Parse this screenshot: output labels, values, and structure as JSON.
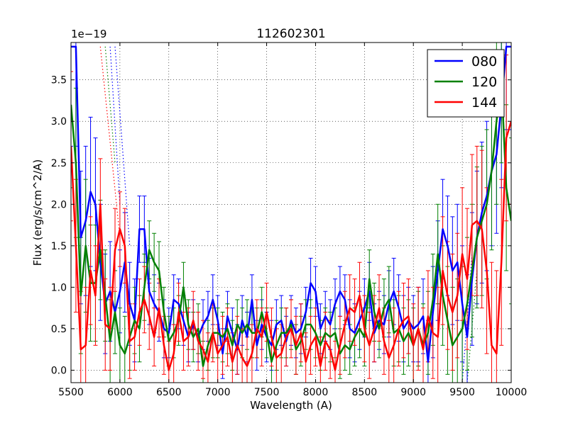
{
  "chart_data": {
    "type": "line",
    "title": "112602301",
    "xlabel": "Wavelength (A)",
    "ylabel": "Flux (erg/s/cm^2/A)",
    "y_scale_note": "1e−19",
    "xlim": [
      5500,
      10000
    ],
    "ylim": [
      -0.15,
      3.95
    ],
    "xticks": [
      5500,
      6000,
      6500,
      7000,
      7500,
      8000,
      8500,
      9000,
      9500,
      10000
    ],
    "xtick_labels": [
      "5500",
      "6000",
      "6500",
      "7000",
      "7500",
      "8000",
      "8500",
      "9000",
      "9500",
      "10000"
    ],
    "yticks": [
      0.0,
      0.5,
      1.0,
      1.5,
      2.0,
      2.5,
      3.0,
      3.5
    ],
    "ytick_labels": [
      "0.0",
      "0.5",
      "1.0",
      "1.5",
      "2.0",
      "2.5",
      "3.0",
      "3.5"
    ],
    "grid": true,
    "legend_position": "top-right",
    "series": [
      {
        "name": "080",
        "color": "#0000ff",
        "x": [
          5500,
          5550,
          5600,
          5650,
          5700,
          5750,
          5800,
          5850,
          5900,
          5950,
          6000,
          6050,
          6100,
          6150,
          6200,
          6250,
          6300,
          6350,
          6400,
          6450,
          6500,
          6550,
          6600,
          6650,
          6700,
          6750,
          6800,
          6850,
          6900,
          6950,
          7000,
          7050,
          7100,
          7150,
          7200,
          7250,
          7300,
          7350,
          7400,
          7450,
          7500,
          7550,
          7600,
          7650,
          7700,
          7750,
          7800,
          7850,
          7900,
          7950,
          8000,
          8050,
          8100,
          8150,
          8200,
          8250,
          8300,
          8350,
          8400,
          8450,
          8500,
          8550,
          8600,
          8650,
          8700,
          8750,
          8800,
          8850,
          8900,
          8950,
          9000,
          9050,
          9100,
          9150,
          9200,
          9250,
          9300,
          9350,
          9400,
          9450,
          9500,
          9550,
          9600,
          9650,
          9700,
          9750,
          9800,
          9850,
          9900,
          9950,
          10000
        ],
        "y": [
          3.9,
          3.9,
          1.6,
          1.8,
          2.15,
          2.0,
          1.3,
          0.8,
          0.95,
          0.7,
          0.95,
          1.3,
          0.8,
          0.6,
          1.7,
          1.7,
          0.95,
          0.8,
          0.7,
          0.5,
          0.45,
          0.85,
          0.8,
          0.6,
          0.4,
          0.55,
          0.4,
          0.55,
          0.65,
          0.85,
          0.6,
          0.2,
          0.65,
          0.45,
          0.25,
          0.6,
          0.4,
          0.85,
          0.3,
          0.55,
          0.4,
          0.3,
          0.55,
          0.6,
          0.35,
          0.6,
          0.45,
          0.5,
          0.7,
          1.05,
          0.95,
          0.5,
          0.65,
          0.55,
          0.8,
          0.95,
          0.85,
          0.5,
          0.45,
          0.6,
          0.75,
          0.95,
          0.45,
          0.6,
          0.55,
          0.8,
          0.95,
          0.75,
          0.5,
          0.6,
          0.5,
          0.55,
          0.65,
          0.1,
          0.7,
          1.2,
          1.7,
          1.5,
          1.2,
          1.3,
          0.8,
          0.4,
          1.1,
          1.6,
          1.9,
          2.1,
          2.4,
          2.6,
          3.2,
          3.9,
          3.9
        ],
        "yerr": [
          1.2,
          1.2,
          0.8,
          0.9,
          0.9,
          0.8,
          0.7,
          0.6,
          0.6,
          0.5,
          0.5,
          0.6,
          0.5,
          0.5,
          0.4,
          0.4,
          0.4,
          0.35,
          0.35,
          0.35,
          0.3,
          0.3,
          0.3,
          0.3,
          0.3,
          0.3,
          0.3,
          0.3,
          0.3,
          0.3,
          0.3,
          0.3,
          0.3,
          0.3,
          0.3,
          0.3,
          0.3,
          0.3,
          0.3,
          0.3,
          0.3,
          0.3,
          0.3,
          0.3,
          0.3,
          0.3,
          0.3,
          0.3,
          0.3,
          0.3,
          0.3,
          0.3,
          0.3,
          0.3,
          0.3,
          0.3,
          0.3,
          0.35,
          0.35,
          0.35,
          0.35,
          0.35,
          0.35,
          0.35,
          0.35,
          0.4,
          0.4,
          0.4,
          0.4,
          0.4,
          0.4,
          0.45,
          0.45,
          0.5,
          0.55,
          0.6,
          0.6,
          0.6,
          0.65,
          0.7,
          0.7,
          0.75,
          0.8,
          0.8,
          0.85,
          0.9,
          0.9,
          0.95,
          1.0,
          1.0,
          1.0
        ]
      },
      {
        "name": "120",
        "color": "#008000",
        "x": [
          5500,
          5550,
          5600,
          5650,
          5700,
          5750,
          5800,
          5850,
          5900,
          5950,
          6000,
          6050,
          6100,
          6150,
          6200,
          6250,
          6300,
          6350,
          6400,
          6450,
          6500,
          6550,
          6600,
          6650,
          6700,
          6750,
          6800,
          6850,
          6900,
          6950,
          7000,
          7050,
          7100,
          7150,
          7200,
          7250,
          7300,
          7350,
          7400,
          7450,
          7500,
          7550,
          7600,
          7650,
          7700,
          7750,
          7800,
          7850,
          7900,
          7950,
          8000,
          8050,
          8100,
          8150,
          8200,
          8250,
          8300,
          8350,
          8400,
          8450,
          8500,
          8550,
          8600,
          8650,
          8700,
          8750,
          8800,
          8850,
          8900,
          8950,
          9000,
          9050,
          9100,
          9150,
          9200,
          9250,
          9300,
          9350,
          9400,
          9450,
          9500,
          9550,
          9600,
          9650,
          9700,
          9750,
          9800,
          9850,
          9900,
          9950,
          10000
        ],
        "y": [
          3.2,
          2.5,
          0.9,
          1.5,
          1.05,
          1.05,
          1.45,
          0.9,
          0.35,
          0.7,
          0.3,
          0.2,
          0.4,
          0.6,
          0.5,
          1.0,
          1.45,
          1.3,
          1.2,
          0.7,
          0.35,
          0.45,
          0.6,
          1.0,
          0.55,
          0.4,
          0.5,
          0.05,
          0.3,
          0.45,
          0.45,
          0.4,
          0.5,
          0.3,
          0.55,
          0.45,
          0.55,
          0.45,
          0.45,
          0.7,
          0.45,
          0.1,
          0.3,
          0.45,
          0.45,
          0.55,
          0.25,
          0.35,
          0.55,
          0.55,
          0.45,
          0.3,
          0.45,
          0.4,
          0.45,
          0.2,
          0.3,
          0.25,
          0.4,
          0.5,
          0.4,
          1.1,
          0.7,
          0.5,
          0.75,
          0.85,
          0.45,
          0.5,
          0.35,
          0.45,
          0.3,
          0.5,
          0.3,
          0.45,
          0.85,
          1.4,
          0.9,
          0.6,
          0.3,
          0.4,
          0.5,
          0.8,
          1.2,
          1.6,
          1.8,
          2.0,
          2.4,
          3.0,
          3.5,
          2.2,
          1.8
        ],
        "yerr": [
          1.0,
          0.9,
          0.7,
          0.8,
          0.7,
          0.7,
          0.6,
          0.55,
          0.5,
          0.5,
          0.45,
          0.45,
          0.4,
          0.4,
          0.4,
          0.4,
          0.35,
          0.35,
          0.35,
          0.3,
          0.3,
          0.3,
          0.3,
          0.3,
          0.3,
          0.3,
          0.3,
          0.3,
          0.3,
          0.3,
          0.3,
          0.3,
          0.3,
          0.3,
          0.3,
          0.3,
          0.3,
          0.3,
          0.3,
          0.3,
          0.3,
          0.3,
          0.3,
          0.3,
          0.3,
          0.3,
          0.3,
          0.3,
          0.3,
          0.3,
          0.3,
          0.3,
          0.3,
          0.3,
          0.3,
          0.3,
          0.3,
          0.3,
          0.35,
          0.35,
          0.35,
          0.35,
          0.35,
          0.35,
          0.35,
          0.4,
          0.4,
          0.4,
          0.4,
          0.4,
          0.45,
          0.45,
          0.5,
          0.5,
          0.55,
          0.6,
          0.6,
          0.65,
          0.7,
          0.7,
          0.75,
          0.8,
          0.8,
          0.85,
          0.9,
          0.9,
          0.95,
          1.0,
          1.0,
          1.0,
          1.0
        ]
      },
      {
        "name": "144",
        "color": "#ff0000",
        "x": [
          5500,
          5550,
          5600,
          5650,
          5700,
          5750,
          5800,
          5850,
          5900,
          5950,
          6000,
          6050,
          6100,
          6150,
          6200,
          6250,
          6300,
          6350,
          6400,
          6450,
          6500,
          6550,
          6600,
          6650,
          6700,
          6750,
          6800,
          6850,
          6900,
          6950,
          7000,
          7050,
          7100,
          7150,
          7200,
          7250,
          7300,
          7350,
          7400,
          7450,
          7500,
          7550,
          7600,
          7650,
          7700,
          7750,
          7800,
          7850,
          7900,
          7950,
          8000,
          8050,
          8100,
          8150,
          8200,
          8250,
          8300,
          8350,
          8400,
          8450,
          8500,
          8550,
          8600,
          8650,
          8700,
          8750,
          8800,
          8850,
          8900,
          8950,
          9000,
          9050,
          9100,
          9150,
          9200,
          9250,
          9300,
          9350,
          9400,
          9450,
          9500,
          9550,
          9600,
          9650,
          9700,
          9750,
          9800,
          9850,
          9900,
          9950,
          10000
        ],
        "y": [
          2.7,
          1.5,
          0.25,
          0.3,
          1.2,
          0.9,
          2.0,
          0.55,
          0.5,
          1.45,
          1.7,
          1.5,
          0.35,
          0.4,
          0.7,
          0.85,
          0.65,
          0.4,
          0.75,
          0.3,
          0.0,
          0.2,
          0.7,
          0.35,
          0.4,
          0.6,
          0.35,
          0.25,
          0.1,
          0.45,
          0.2,
          0.3,
          0.4,
          0.1,
          0.3,
          0.15,
          0.05,
          0.2,
          0.5,
          0.4,
          0.7,
          0.4,
          0.15,
          0.2,
          0.4,
          0.5,
          0.3,
          0.45,
          0.1,
          0.3,
          0.4,
          0.05,
          0.35,
          0.25,
          0.0,
          0.3,
          0.55,
          0.75,
          0.7,
          0.9,
          0.5,
          0.3,
          0.5,
          0.75,
          0.35,
          0.15,
          0.3,
          0.5,
          0.6,
          0.65,
          0.3,
          0.5,
          0.25,
          0.65,
          0.45,
          0.4,
          1.2,
          0.9,
          0.7,
          0.9,
          1.4,
          1.1,
          1.75,
          1.8,
          1.7,
          1.2,
          0.3,
          0.2,
          1.3,
          2.8,
          3.0
        ],
        "yerr": [
          0.9,
          0.8,
          0.7,
          0.7,
          0.65,
          0.6,
          0.55,
          0.55,
          0.5,
          0.5,
          0.45,
          0.45,
          0.45,
          0.4,
          0.4,
          0.4,
          0.4,
          0.35,
          0.35,
          0.35,
          0.35,
          0.35,
          0.35,
          0.35,
          0.35,
          0.35,
          0.35,
          0.35,
          0.35,
          0.35,
          0.35,
          0.35,
          0.35,
          0.35,
          0.35,
          0.35,
          0.35,
          0.35,
          0.35,
          0.35,
          0.35,
          0.35,
          0.35,
          0.35,
          0.35,
          0.35,
          0.35,
          0.35,
          0.35,
          0.35,
          0.35,
          0.35,
          0.35,
          0.35,
          0.35,
          0.35,
          0.4,
          0.4,
          0.4,
          0.4,
          0.4,
          0.4,
          0.4,
          0.4,
          0.4,
          0.45,
          0.45,
          0.45,
          0.45,
          0.45,
          0.5,
          0.5,
          0.5,
          0.55,
          0.55,
          0.6,
          0.65,
          0.65,
          0.7,
          0.75,
          0.8,
          0.85,
          0.85,
          0.9,
          0.95,
          1.0,
          1.0,
          1.0,
          1.0,
          1.0,
          1.0
        ]
      }
    ],
    "dotted_extensions": [
      {
        "series": "080",
        "color": "#0000ff",
        "x": [
          5900,
          6000
        ],
        "y": [
          3.9,
          2.0
        ]
      },
      {
        "series": "080",
        "color": "#0000ff",
        "x": [
          5950,
          6100
        ],
        "y": [
          3.9,
          1.5
        ]
      },
      {
        "series": "144",
        "color": "#ff0000",
        "x": [
          5800,
          6000
        ],
        "y": [
          3.9,
          1.6
        ]
      },
      {
        "series": "120",
        "color": "#008000",
        "x": [
          5850,
          5950
        ],
        "y": [
          3.9,
          2.5
        ]
      },
      {
        "series": "080",
        "color": "#0000ff",
        "x": [
          9500,
          9600
        ],
        "y": [
          -0.15,
          1.4
        ]
      },
      {
        "series": "120",
        "color": "#008000",
        "x": [
          9550,
          9650
        ],
        "y": [
          -0.15,
          1.2
        ]
      }
    ]
  }
}
